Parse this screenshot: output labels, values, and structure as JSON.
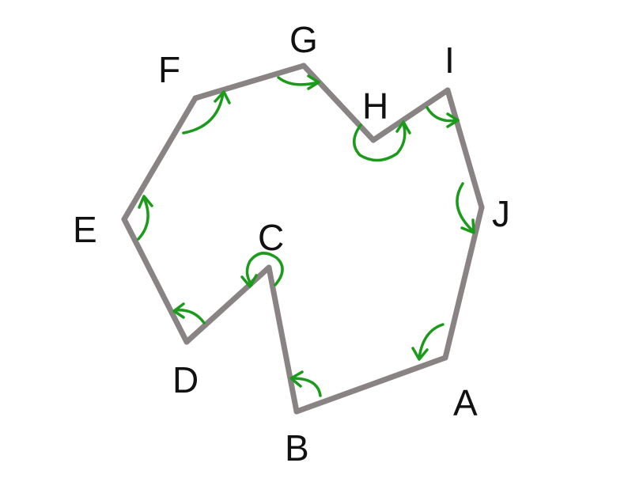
{
  "diagram": {
    "vertices": [
      {
        "label": "A"
      },
      {
        "label": "B"
      },
      {
        "label": "C"
      },
      {
        "label": "D"
      },
      {
        "label": "E"
      },
      {
        "label": "F"
      },
      {
        "label": "G"
      },
      {
        "label": "H"
      },
      {
        "label": "I"
      },
      {
        "label": "J"
      }
    ],
    "edges": [
      [
        "A",
        "B"
      ],
      [
        "B",
        "C"
      ],
      [
        "C",
        "D"
      ],
      [
        "D",
        "E"
      ],
      [
        "E",
        "F"
      ],
      [
        "F",
        "G"
      ],
      [
        "G",
        "H"
      ],
      [
        "H",
        "I"
      ],
      [
        "I",
        "J"
      ],
      [
        "J",
        "A"
      ]
    ],
    "colors": {
      "edge": "#8a8383",
      "angle_arrow": "#1c9a1c",
      "label": "#111111",
      "background": "#ffffff"
    }
  }
}
